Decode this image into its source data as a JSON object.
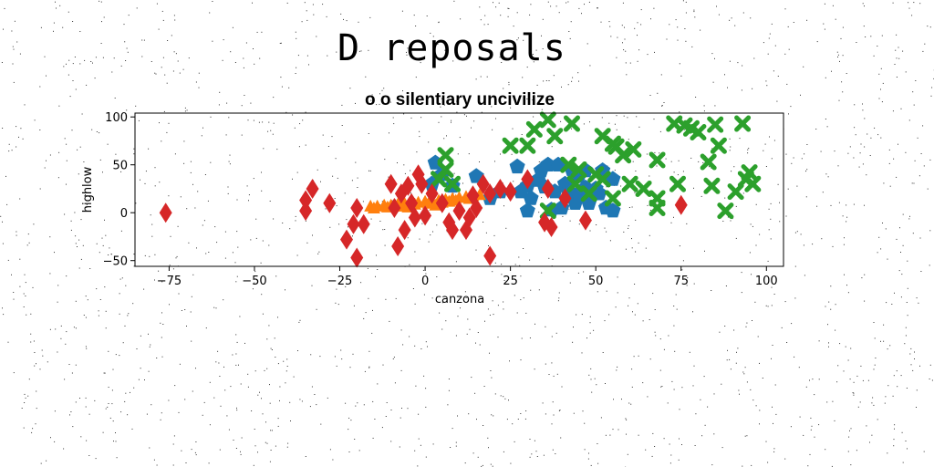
{
  "figure_title": "D reposals",
  "chart_data": {
    "type": "scatter",
    "title": "o o silentiary uncivilize",
    "xlabel": "canzona",
    "ylabel": "highlow",
    "xlim": [
      -85,
      105
    ],
    "ylim": [
      -56,
      104
    ],
    "xticks": [
      -75,
      -50,
      -25,
      0,
      25,
      50,
      75,
      100
    ],
    "yticks": [
      -50,
      0,
      50,
      100
    ],
    "xtick_labels": [
      "−75",
      "−50",
      "−25",
      "0",
      "25",
      "50",
      "75",
      "100"
    ],
    "ytick_labels": [
      "−50",
      "0",
      "50",
      "100"
    ],
    "grid": false,
    "series": [
      {
        "color": "#1f77b4",
        "marker": "pentagon",
        "points": [
          [
            3,
            52
          ],
          [
            5,
            40
          ],
          [
            2,
            30
          ],
          [
            8,
            28
          ],
          [
            15,
            38
          ],
          [
            19,
            15
          ],
          [
            22,
            22
          ],
          [
            27,
            48
          ],
          [
            28,
            22
          ],
          [
            30,
            28
          ],
          [
            31,
            15
          ],
          [
            33,
            34
          ],
          [
            34,
            44
          ],
          [
            36,
            50
          ],
          [
            38,
            22
          ],
          [
            37,
            3
          ],
          [
            30,
            2
          ],
          [
            39,
            50
          ],
          [
            41,
            30
          ],
          [
            42,
            22
          ],
          [
            43,
            45
          ],
          [
            45,
            38
          ],
          [
            47,
            44
          ],
          [
            50,
            25
          ],
          [
            52,
            44
          ],
          [
            55,
            35
          ],
          [
            48,
            10
          ],
          [
            51,
            20
          ],
          [
            53,
            5
          ],
          [
            47,
            26
          ],
          [
            44,
            10
          ],
          [
            40,
            5
          ],
          [
            35,
            27
          ],
          [
            55,
            2
          ],
          [
            45,
            20
          ]
        ]
      },
      {
        "color": "#ff7f0e",
        "marker": "triangle",
        "points": [
          [
            -16,
            7
          ],
          [
            -14,
            7
          ],
          [
            -12,
            8
          ],
          [
            -10,
            8
          ],
          [
            -8,
            9
          ],
          [
            -6,
            10
          ],
          [
            -4,
            10
          ],
          [
            -2,
            11
          ],
          [
            0,
            12
          ],
          [
            2,
            12
          ],
          [
            4,
            13
          ],
          [
            6,
            14
          ],
          [
            8,
            15
          ],
          [
            10,
            16
          ],
          [
            12,
            17
          ],
          [
            14,
            18
          ],
          [
            16,
            19
          ],
          [
            -15,
            5
          ],
          [
            -11,
            6
          ],
          [
            -7,
            7
          ],
          [
            -3,
            9
          ],
          [
            1,
            10
          ],
          [
            5,
            11
          ],
          [
            9,
            13
          ],
          [
            13,
            15
          ],
          [
            -5,
            6
          ],
          [
            3,
            8
          ],
          [
            7,
            12
          ]
        ]
      },
      {
        "color": "#2ca02c",
        "marker": "x",
        "points": [
          [
            6,
            60
          ],
          [
            6,
            45
          ],
          [
            4,
            35
          ],
          [
            8,
            30
          ],
          [
            25,
            70
          ],
          [
            30,
            70
          ],
          [
            32,
            87
          ],
          [
            36,
            97
          ],
          [
            38,
            80
          ],
          [
            43,
            93
          ],
          [
            52,
            80
          ],
          [
            55,
            72
          ],
          [
            56,
            69
          ],
          [
            61,
            66
          ],
          [
            68,
            55
          ],
          [
            73,
            93
          ],
          [
            76,
            91
          ],
          [
            78,
            88
          ],
          [
            80,
            84
          ],
          [
            83,
            53
          ],
          [
            84,
            28
          ],
          [
            85,
            92
          ],
          [
            86,
            70
          ],
          [
            91,
            22
          ],
          [
            93,
            93
          ],
          [
            94,
            35
          ],
          [
            95,
            42
          ],
          [
            96,
            30
          ],
          [
            88,
            2
          ],
          [
            74,
            30
          ],
          [
            68,
            15
          ],
          [
            68,
            5
          ],
          [
            58,
            60
          ],
          [
            50,
            40
          ],
          [
            52,
            35
          ],
          [
            55,
            15
          ],
          [
            48,
            20
          ],
          [
            44,
            30
          ],
          [
            36,
            2
          ],
          [
            42,
            50
          ],
          [
            45,
            45
          ],
          [
            60,
            30
          ],
          [
            64,
            25
          ]
        ]
      },
      {
        "color": "#d62728",
        "marker": "diamond",
        "points": [
          [
            -76,
            0
          ],
          [
            -35,
            13
          ],
          [
            -35,
            2
          ],
          [
            -33,
            25
          ],
          [
            -28,
            10
          ],
          [
            -23,
            -28
          ],
          [
            -21,
            -12
          ],
          [
            -20,
            5
          ],
          [
            -20,
            -47
          ],
          [
            -18,
            -12
          ],
          [
            -10,
            30
          ],
          [
            -9,
            5
          ],
          [
            -8,
            -35
          ],
          [
            -7,
            20
          ],
          [
            -6,
            -18
          ],
          [
            -4,
            10
          ],
          [
            -3,
            -5
          ],
          [
            -2,
            40
          ],
          [
            -1,
            30
          ],
          [
            0,
            -3
          ],
          [
            2,
            20
          ],
          [
            5,
            10
          ],
          [
            7,
            -10
          ],
          [
            8,
            -18
          ],
          [
            12,
            -18
          ],
          [
            13,
            -5
          ],
          [
            14,
            18
          ],
          [
            15,
            5
          ],
          [
            17,
            30
          ],
          [
            19,
            20
          ],
          [
            19,
            -45
          ],
          [
            22,
            25
          ],
          [
            25,
            22
          ],
          [
            30,
            35
          ],
          [
            35,
            -10
          ],
          [
            36,
            25
          ],
          [
            37,
            -15
          ],
          [
            41,
            15
          ],
          [
            47,
            -8
          ],
          [
            75,
            8
          ],
          [
            -5,
            28
          ],
          [
            10,
            2
          ]
        ]
      }
    ]
  }
}
